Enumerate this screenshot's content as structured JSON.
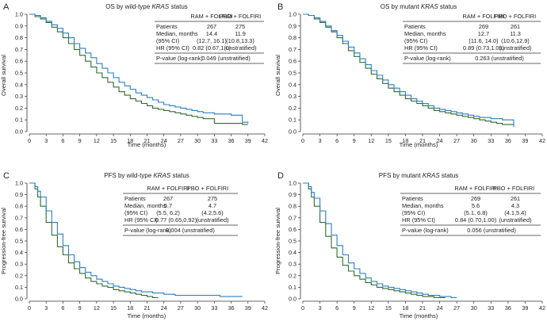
{
  "colors": {
    "ram": "#2a7fc0",
    "pbo": "#2e6b2e",
    "axis": "#333333"
  },
  "figure": {
    "x_label": "Time (months)",
    "x_ticks": [
      "0",
      "3",
      "6",
      "9",
      "12",
      "15",
      "18",
      "21",
      "24",
      "27",
      "30",
      "33",
      "36",
      "39",
      "42"
    ],
    "y_ticks": [
      "0.0",
      "0.1",
      "0.2",
      "0.3",
      "0.4",
      "0.5",
      "0.6",
      "0.7",
      "0.8",
      "0.9",
      "1.0"
    ],
    "col_ram": "RAM + FOLFIRI",
    "col_pbo": "PBO + FOLFIRI",
    "row_patients": "Patients",
    "row_median": "Median, months",
    "row_ci": "(95% CI)",
    "row_hr": "HR (95% CI)",
    "row_p": "P-value (log-rank)"
  },
  "panels": [
    {
      "letter": "A",
      "title_pre": "OS by wild-type ",
      "title_em": "KRAS",
      "title_post": " status",
      "ylabel": "Overall survival",
      "patients_ram": "267",
      "patients_pbo": "275",
      "median_ram": "14.4",
      "median_pbo": "11.9",
      "ci_ram": "(12.7, 16.1)",
      "ci_pbo": "(10.8,13.3)",
      "hr": "0.82 (0.67,1.0)",
      "hr_note": "(unstratified)",
      "p": "0.049 (unstratified)"
    },
    {
      "letter": "B",
      "title_pre": "OS by mutant ",
      "title_em": "KRAS",
      "title_post": " status",
      "ylabel": "Overall survival",
      "patients_ram": "269",
      "patients_pbo": "261",
      "median_ram": "12.7",
      "median_pbo": "11.3",
      "ci_ram": "(11.6, 14.0)",
      "ci_pbo": "(10.6,12.9)",
      "hr": "0.89 (0.73,1.09)",
      "hr_note": "(unstratified)",
      "p": "0.263 (unstratified)"
    },
    {
      "letter": "C",
      "title_pre": "PFS by wild-type ",
      "title_em": "KRAS",
      "title_post": " status",
      "ylabel": "Progression-free survival",
      "patients_ram": "267",
      "patients_pbo": "275",
      "median_ram": "5.7",
      "median_pbo": "4.7",
      "ci_ram": "(5.5, 6.2)",
      "ci_pbo": "(4.2,5.6)",
      "hr": "0.77 (0.65,0.92)",
      "hr_note": "(unstratified)",
      "p": "0.004 (unstratified)"
    },
    {
      "letter": "D",
      "title_pre": "PFS by mutant ",
      "title_em": "KRAS",
      "title_post": " status",
      "ylabel": "Progression-free survival",
      "patients_ram": "269",
      "patients_pbo": "261",
      "median_ram": "5.6",
      "median_pbo": "4.3",
      "ci_ram": "(5.1, 6.8)",
      "ci_pbo": "(4.1,5.4)",
      "hr": "0.84 (0.70,1.00)",
      "hr_note": "(unstratified)",
      "p": "0.056 (unstratified)"
    }
  ],
  "chart_data": [
    {
      "type": "line",
      "title": "OS by wild-type KRAS status",
      "xlabel": "Time (months)",
      "ylabel": "Overall survival",
      "xlim": [
        0,
        42
      ],
      "ylim": [
        0,
        1.0
      ],
      "series": [
        {
          "name": "RAM + FOLFIRI",
          "x": [
            0,
            1,
            2,
            3,
            4,
            5,
            6,
            7,
            8,
            9,
            10,
            11,
            12,
            13,
            14,
            15,
            16,
            17,
            18,
            19,
            20,
            21,
            22,
            23,
            24,
            25,
            26,
            27,
            28,
            29,
            30,
            31,
            32,
            33,
            34,
            35,
            36,
            37,
            38,
            39
          ],
          "y": [
            1.0,
            0.99,
            0.97,
            0.94,
            0.91,
            0.88,
            0.84,
            0.8,
            0.75,
            0.71,
            0.67,
            0.63,
            0.58,
            0.54,
            0.5,
            0.46,
            0.42,
            0.39,
            0.36,
            0.33,
            0.31,
            0.29,
            0.27,
            0.25,
            0.23,
            0.22,
            0.21,
            0.2,
            0.19,
            0.18,
            0.17,
            0.16,
            0.16,
            0.15,
            0.15,
            0.15,
            0.14,
            0.14,
            0.08,
            0.07
          ]
        },
        {
          "name": "PBO + FOLFIRI",
          "x": [
            0,
            1,
            2,
            3,
            4,
            5,
            6,
            7,
            8,
            9,
            10,
            11,
            12,
            13,
            14,
            15,
            16,
            17,
            18,
            19,
            20,
            21,
            22,
            23,
            24,
            25,
            26,
            27,
            28,
            29,
            30,
            31,
            32,
            33,
            34,
            35,
            36,
            37,
            38,
            39
          ],
          "y": [
            1.0,
            0.98,
            0.96,
            0.93,
            0.89,
            0.85,
            0.8,
            0.75,
            0.7,
            0.65,
            0.6,
            0.55,
            0.5,
            0.46,
            0.42,
            0.38,
            0.34,
            0.31,
            0.28,
            0.26,
            0.24,
            0.22,
            0.2,
            0.19,
            0.18,
            0.17,
            0.16,
            0.15,
            0.14,
            0.13,
            0.12,
            0.11,
            0.11,
            0.07,
            0.07,
            0.07,
            0.07,
            0.07,
            0.06,
            0.06
          ]
        }
      ]
    },
    {
      "type": "line",
      "title": "OS by mutant KRAS status",
      "xlabel": "Time (months)",
      "ylabel": "Overall survival",
      "xlim": [
        0,
        42
      ],
      "ylim": [
        0,
        1.0
      ],
      "series": [
        {
          "name": "RAM + FOLFIRI",
          "x": [
            0,
            1,
            2,
            3,
            4,
            5,
            6,
            7,
            8,
            9,
            10,
            11,
            12,
            13,
            14,
            15,
            16,
            17,
            18,
            19,
            20,
            21,
            22,
            23,
            24,
            25,
            26,
            27,
            28,
            29,
            30,
            31,
            32,
            33,
            34,
            35,
            36,
            37
          ],
          "y": [
            1.0,
            0.99,
            0.97,
            0.94,
            0.9,
            0.86,
            0.82,
            0.77,
            0.72,
            0.67,
            0.62,
            0.57,
            0.52,
            0.48,
            0.44,
            0.4,
            0.37,
            0.34,
            0.31,
            0.28,
            0.26,
            0.24,
            0.22,
            0.2,
            0.19,
            0.18,
            0.17,
            0.16,
            0.15,
            0.14,
            0.13,
            0.12,
            0.12,
            0.11,
            0.11,
            0.1,
            0.1,
            0.04
          ]
        },
        {
          "name": "PBO + FOLFIRI",
          "x": [
            0,
            1,
            2,
            3,
            4,
            5,
            6,
            7,
            8,
            9,
            10,
            11,
            12,
            13,
            14,
            15,
            16,
            17,
            18,
            19,
            20,
            21,
            22,
            23,
            24,
            25,
            26,
            27,
            28,
            29,
            30,
            31,
            32,
            33,
            34,
            35,
            36,
            37
          ],
          "y": [
            1.0,
            0.99,
            0.96,
            0.93,
            0.89,
            0.85,
            0.8,
            0.75,
            0.69,
            0.64,
            0.59,
            0.54,
            0.49,
            0.45,
            0.41,
            0.37,
            0.34,
            0.31,
            0.28,
            0.26,
            0.24,
            0.22,
            0.2,
            0.18,
            0.17,
            0.16,
            0.15,
            0.14,
            0.13,
            0.12,
            0.11,
            0.1,
            0.09,
            0.08,
            0.07,
            0.06,
            0.06,
            0.05
          ]
        }
      ]
    },
    {
      "type": "line",
      "title": "PFS by wild-type KRAS status",
      "xlabel": "Time (months)",
      "ylabel": "Progression-free survival",
      "xlim": [
        0,
        42
      ],
      "ylim": [
        0,
        1.0
      ],
      "series": [
        {
          "name": "RAM + FOLFIRI",
          "x": [
            0,
            1,
            1.5,
            2,
            3,
            4,
            5,
            6,
            7,
            8,
            9,
            10,
            11,
            12,
            13,
            14,
            15,
            16,
            17,
            18,
            19,
            20,
            21,
            22,
            24,
            26,
            28,
            30,
            32,
            34,
            36,
            38
          ],
          "y": [
            1.0,
            0.97,
            0.93,
            0.88,
            0.76,
            0.66,
            0.56,
            0.46,
            0.38,
            0.32,
            0.27,
            0.23,
            0.2,
            0.17,
            0.15,
            0.13,
            0.11,
            0.1,
            0.09,
            0.08,
            0.07,
            0.06,
            0.06,
            0.05,
            0.04,
            0.03,
            0.03,
            0.03,
            0.03,
            0.02,
            0.02,
            0.02
          ]
        },
        {
          "name": "PBO + FOLFIRI",
          "x": [
            0,
            1,
            1.5,
            2,
            3,
            4,
            5,
            6,
            7,
            8,
            9,
            10,
            11,
            12,
            13,
            14,
            15,
            16,
            17,
            18,
            19,
            20,
            21,
            22,
            23
          ],
          "y": [
            1.0,
            0.95,
            0.88,
            0.8,
            0.66,
            0.55,
            0.45,
            0.38,
            0.31,
            0.26,
            0.22,
            0.18,
            0.15,
            0.13,
            0.11,
            0.1,
            0.08,
            0.07,
            0.06,
            0.05,
            0.04,
            0.03,
            0.02,
            0.01,
            0.01
          ]
        }
      ]
    },
    {
      "type": "line",
      "title": "PFS by mutant KRAS status",
      "xlabel": "Time (months)",
      "ylabel": "Progression-free survival",
      "xlim": [
        0,
        42
      ],
      "ylim": [
        0,
        1.0
      ],
      "series": [
        {
          "name": "RAM + FOLFIRI",
          "x": [
            0,
            1,
            1.5,
            2,
            3,
            4,
            5,
            6,
            7,
            8,
            9,
            10,
            11,
            12,
            13,
            14,
            15,
            16,
            17,
            18,
            19,
            20,
            21,
            22,
            23,
            24,
            25,
            26,
            27
          ],
          "y": [
            1.0,
            0.97,
            0.92,
            0.87,
            0.76,
            0.65,
            0.55,
            0.46,
            0.38,
            0.31,
            0.26,
            0.22,
            0.18,
            0.15,
            0.13,
            0.11,
            0.1,
            0.09,
            0.08,
            0.07,
            0.06,
            0.05,
            0.04,
            0.03,
            0.03,
            0.02,
            0.02,
            0.01,
            0.01
          ]
        },
        {
          "name": "PBO + FOLFIRI",
          "x": [
            0,
            1,
            1.5,
            2,
            3,
            4,
            5,
            6,
            7,
            8,
            9,
            10,
            11,
            12,
            13,
            14,
            15,
            16,
            17,
            18,
            19,
            20,
            21,
            22,
            23,
            24,
            25
          ],
          "y": [
            1.0,
            0.95,
            0.88,
            0.8,
            0.66,
            0.54,
            0.44,
            0.36,
            0.29,
            0.24,
            0.2,
            0.17,
            0.14,
            0.12,
            0.1,
            0.09,
            0.08,
            0.07,
            0.06,
            0.05,
            0.04,
            0.03,
            0.02,
            0.02,
            0.01,
            0.01,
            0.01
          ]
        }
      ]
    }
  ]
}
